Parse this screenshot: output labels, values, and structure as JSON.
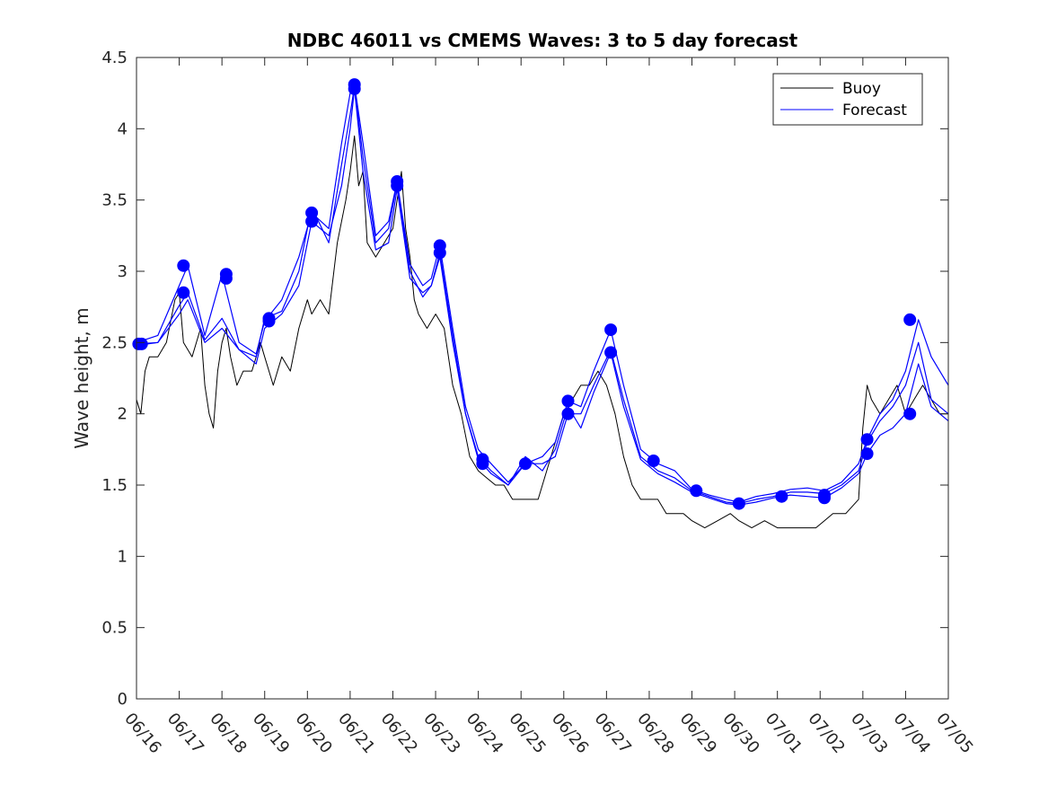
{
  "chart_data": {
    "type": "line",
    "title": "NDBC 46011 vs CMEMS Waves: 3 to 5 day forecast",
    "xlabel": "",
    "ylabel": "Wave height, m",
    "xlim": [
      0,
      19
    ],
    "ylim": [
      0,
      4.5
    ],
    "x_ticks": [
      0,
      1,
      2,
      3,
      4,
      5,
      6,
      7,
      8,
      9,
      10,
      11,
      12,
      13,
      14,
      15,
      16,
      17,
      18,
      19
    ],
    "x_tick_labels": [
      "06/16",
      "06/17",
      "06/18",
      "06/19",
      "06/20",
      "06/21",
      "06/22",
      "06/23",
      "06/24",
      "06/25",
      "06/26",
      "06/27",
      "06/28",
      "06/29",
      "06/30",
      "07/01",
      "07/02",
      "07/03",
      "07/04",
      "07/05"
    ],
    "y_ticks": [
      0,
      0.5,
      1,
      1.5,
      2,
      2.5,
      3,
      3.5,
      4,
      4.5
    ],
    "y_tick_labels": [
      "0",
      "0.5",
      "1",
      "1.5",
      "2",
      "2.5",
      "3",
      "3.5",
      "4",
      "4.5"
    ],
    "grid": false,
    "legend": {
      "position": "top-right",
      "entries": [
        {
          "label": "Buoy",
          "color": "#000000"
        },
        {
          "label": "Forecast",
          "color": "#0000ff"
        }
      ]
    },
    "buoy_color": "#000000",
    "forecast_color": "#0000ff",
    "series": [
      {
        "name": "Buoy",
        "x": [
          0,
          0.1,
          0.2,
          0.3,
          0.5,
          0.7,
          0.9,
          1.0,
          1.1,
          1.3,
          1.5,
          1.6,
          1.7,
          1.8,
          1.9,
          2.0,
          2.1,
          2.2,
          2.35,
          2.5,
          2.7,
          2.9,
          3.0,
          3.2,
          3.4,
          3.6,
          3.8,
          4.0,
          4.1,
          4.3,
          4.5,
          4.7,
          4.9,
          5.0,
          5.1,
          5.2,
          5.3,
          5.4,
          5.6,
          5.8,
          6.0,
          6.1,
          6.2,
          6.3,
          6.4,
          6.5,
          6.6,
          6.8,
          7.0,
          7.2,
          7.4,
          7.6,
          7.8,
          8.0,
          8.2,
          8.4,
          8.6,
          8.8,
          9.0,
          9.2,
          9.4,
          9.6,
          9.8,
          10.0,
          10.2,
          10.4,
          10.6,
          10.8,
          11.0,
          11.2,
          11.4,
          11.6,
          11.8,
          12.0,
          12.2,
          12.4,
          12.6,
          12.8,
          13.0,
          13.3,
          13.6,
          13.9,
          14.1,
          14.4,
          14.7,
          15.0,
          15.3,
          15.6,
          15.9,
          16.1,
          16.3,
          16.6,
          16.9,
          17.0,
          17.1,
          17.2,
          17.4,
          17.6,
          17.8,
          18.0,
          18.2,
          18.4,
          18.6,
          18.8,
          19.0
        ],
        "values": [
          2.1,
          2.0,
          2.3,
          2.4,
          2.4,
          2.5,
          2.8,
          2.85,
          2.5,
          2.4,
          2.6,
          2.2,
          2.0,
          1.9,
          2.3,
          2.5,
          2.6,
          2.4,
          2.2,
          2.3,
          2.3,
          2.5,
          2.4,
          2.2,
          2.4,
          2.3,
          2.6,
          2.8,
          2.7,
          2.8,
          2.7,
          3.2,
          3.5,
          3.7,
          3.95,
          3.6,
          3.7,
          3.2,
          3.1,
          3.2,
          3.3,
          3.5,
          3.7,
          3.3,
          3.1,
          2.8,
          2.7,
          2.6,
          2.7,
          2.6,
          2.2,
          2.0,
          1.7,
          1.6,
          1.55,
          1.5,
          1.5,
          1.4,
          1.4,
          1.4,
          1.4,
          1.6,
          1.8,
          2.0,
          2.1,
          2.2,
          2.2,
          2.3,
          2.2,
          2.0,
          1.7,
          1.5,
          1.4,
          1.4,
          1.4,
          1.3,
          1.3,
          1.3,
          1.25,
          1.2,
          1.25,
          1.3,
          1.25,
          1.2,
          1.25,
          1.2,
          1.2,
          1.2,
          1.2,
          1.25,
          1.3,
          1.3,
          1.4,
          1.9,
          2.2,
          2.1,
          2.0,
          2.1,
          2.2,
          2.0,
          2.1,
          2.2,
          2.1,
          2.0,
          2.0
        ]
      },
      {
        "name": "",
        "x": [
          0,
          0.5,
          1.0,
          1.2,
          1.6,
          2.0,
          2.4,
          2.8,
          3.0,
          3.4,
          3.8,
          4.1,
          4.5,
          4.8,
          5.0,
          5.1,
          5.3,
          5.6,
          5.9,
          6.1,
          6.4,
          6.7,
          6.9,
          7.1,
          7.4,
          7.7,
          8.0,
          8.3,
          8.7,
          9.1,
          9.5,
          9.8,
          10.1,
          10.4,
          10.7,
          11.1,
          11.4,
          11.8,
          12.2,
          12.6,
          13.0,
          13.4,
          13.8,
          14.1,
          14.5,
          14.9,
          15.3,
          15.7,
          16.1,
          16.5,
          16.9,
          17.1,
          17.4,
          17.7,
          18.0,
          18.3,
          18.6,
          19.0
        ],
        "values": [
          2.49,
          2.5,
          2.76,
          2.85,
          2.52,
          2.67,
          2.45,
          2.4,
          2.67,
          2.72,
          3.0,
          3.45,
          3.2,
          3.75,
          4.1,
          4.3,
          3.8,
          3.2,
          3.3,
          3.62,
          3.0,
          2.82,
          2.9,
          3.1,
          2.5,
          2.0,
          1.7,
          1.6,
          1.5,
          1.65,
          1.65,
          1.7,
          2.0,
          2.0,
          2.2,
          2.45,
          2.1,
          1.7,
          1.6,
          1.55,
          1.46,
          1.42,
          1.38,
          1.37,
          1.4,
          1.42,
          1.45,
          1.45,
          1.44,
          1.5,
          1.6,
          1.8,
          1.95,
          2.05,
          2.2,
          2.5,
          2.1,
          2.0
        ]
      },
      {
        "name": "",
        "x": [
          0,
          0.5,
          1.0,
          1.2,
          1.6,
          2.0,
          2.4,
          2.8,
          3.0,
          3.4,
          3.8,
          4.1,
          4.5,
          4.8,
          5.0,
          5.1,
          5.3,
          5.6,
          5.9,
          6.1,
          6.4,
          6.7,
          6.9,
          7.1,
          7.4,
          7.7,
          8.0,
          8.3,
          8.7,
          9.1,
          9.5,
          9.8,
          10.1,
          10.4,
          10.7,
          11.1,
          11.4,
          11.8,
          12.2,
          12.6,
          13.0,
          13.4,
          13.8,
          14.1,
          14.5,
          14.9,
          15.3,
          15.7,
          16.1,
          16.5,
          16.9,
          17.1,
          17.4,
          17.7,
          18.0,
          18.3,
          18.6,
          19.0
        ],
        "values": [
          2.5,
          2.55,
          2.9,
          3.04,
          2.55,
          2.98,
          2.5,
          2.42,
          2.65,
          2.8,
          3.1,
          3.41,
          3.3,
          3.9,
          4.25,
          4.31,
          3.9,
          3.25,
          3.35,
          3.63,
          3.05,
          2.9,
          2.95,
          3.18,
          2.6,
          2.05,
          1.75,
          1.65,
          1.52,
          1.65,
          1.7,
          1.8,
          2.09,
          2.05,
          2.3,
          2.59,
          2.2,
          1.75,
          1.65,
          1.6,
          1.47,
          1.43,
          1.4,
          1.38,
          1.42,
          1.44,
          1.47,
          1.48,
          1.46,
          1.52,
          1.65,
          1.82,
          2.0,
          2.1,
          2.3,
          2.66,
          2.4,
          2.2
        ]
      },
      {
        "name": "",
        "x": [
          0,
          0.5,
          1.0,
          1.2,
          1.6,
          2.0,
          2.4,
          2.8,
          3.0,
          3.4,
          3.8,
          4.1,
          4.5,
          4.8,
          5.0,
          5.1,
          5.3,
          5.6,
          5.9,
          6.1,
          6.4,
          6.7,
          6.9,
          7.1,
          7.4,
          7.7,
          8.0,
          8.3,
          8.7,
          9.1,
          9.5,
          9.8,
          10.1,
          10.4,
          10.7,
          11.1,
          11.4,
          11.8,
          12.2,
          12.6,
          13.0,
          13.4,
          13.8,
          14.1,
          14.5,
          14.9,
          15.3,
          15.7,
          16.1,
          16.5,
          16.9,
          17.1,
          17.4,
          17.7,
          18.0,
          18.3,
          18.6,
          19.0
        ],
        "values": [
          2.48,
          2.5,
          2.7,
          2.8,
          2.5,
          2.6,
          2.45,
          2.35,
          2.6,
          2.7,
          2.9,
          3.35,
          3.25,
          3.6,
          4.0,
          4.28,
          3.7,
          3.15,
          3.2,
          3.58,
          2.95,
          2.85,
          2.9,
          3.13,
          2.55,
          2.0,
          1.68,
          1.58,
          1.5,
          1.7,
          1.6,
          1.75,
          2.05,
          1.9,
          2.15,
          2.43,
          2.05,
          1.68,
          1.58,
          1.52,
          1.45,
          1.41,
          1.37,
          1.36,
          1.38,
          1.41,
          1.43,
          1.42,
          1.41,
          1.48,
          1.58,
          1.72,
          1.85,
          1.9,
          2.0,
          2.35,
          2.05,
          1.95
        ]
      }
    ],
    "markers": {
      "x": [
        0.05,
        0.12,
        1.1,
        1.1,
        2.1,
        2.1,
        3.1,
        3.1,
        4.1,
        4.1,
        5.1,
        5.1,
        6.1,
        6.1,
        7.1,
        7.1,
        8.1,
        8.1,
        9.1,
        10.1,
        10.1,
        11.1,
        11.1,
        12.1,
        13.1,
        14.1,
        15.1,
        16.1,
        16.1,
        17.1,
        17.1,
        18.1,
        18.1
      ],
      "values": [
        2.49,
        2.49,
        3.04,
        2.85,
        2.98,
        2.95,
        2.67,
        2.65,
        3.41,
        3.35,
        4.31,
        4.28,
        3.63,
        3.6,
        3.18,
        3.13,
        1.68,
        1.65,
        1.65,
        2.09,
        2.0,
        2.59,
        2.43,
        1.67,
        1.46,
        1.37,
        1.42,
        1.43,
        1.41,
        1.82,
        1.72,
        2.66,
        2.0
      ]
    }
  }
}
